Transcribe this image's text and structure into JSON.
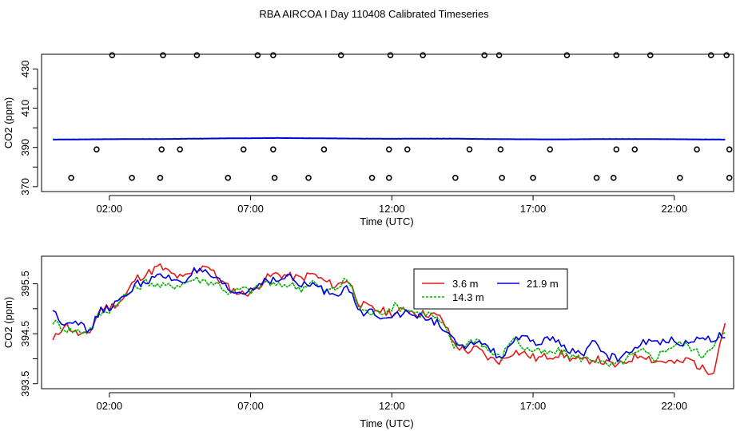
{
  "figure_title": "RBA AIRCOA I  Day 110408  Calibrated Timeseries",
  "colors": {
    "red": "#e41a1c",
    "green": "#00b400",
    "blue": "#0000e0",
    "axis": "#000000"
  },
  "chart_data": [
    {
      "type": "scatter",
      "title": "",
      "xlabel": "Time (UTC)",
      "ylabel": "CO2 (ppm)",
      "xlim": [
        -0.4,
        24.1
      ],
      "ylim": [
        367.5,
        437.5
      ],
      "xticks": [
        2,
        7,
        12,
        17,
        22
      ],
      "xtick_labels": [
        "02:00",
        "07:00",
        "12:00",
        "17:00",
        "22:00"
      ],
      "yticks": [
        370,
        390,
        410,
        430
      ],
      "ytick_labels": [
        "370",
        "390",
        "410",
        "430"
      ],
      "minor_yticks": [
        380,
        400,
        420
      ],
      "grid": false,
      "markers": {
        "top_row_ppm": 437,
        "top_row_hours": [
          2.1,
          3.9,
          5.1,
          7.25,
          7.8,
          10.2,
          11.95,
          13.1,
          15.28,
          15.8,
          18.2,
          19.95,
          21.15,
          23.3,
          23.85
        ],
        "mid_row_ppm": 389,
        "mid_row_hours": [
          1.55,
          3.85,
          4.5,
          6.75,
          7.8,
          9.6,
          11.9,
          12.55,
          14.75,
          15.85,
          17.6,
          19.95,
          20.6,
          22.8,
          23.95
        ],
        "bottom_row_ppm": 374.5,
        "bottom_row_hours": [
          0.65,
          2.8,
          3.8,
          6.2,
          7.85,
          9.05,
          11.3,
          11.9,
          14.25,
          15.9,
          17.0,
          19.25,
          19.85,
          22.2,
          23.95
        ]
      },
      "series": [
        {
          "name": "flat trace",
          "color_key": "blue",
          "x_start": 0.0,
          "x_end": 23.8,
          "values": [
            394.0,
            394.2,
            394.3,
            394.6,
            394.8,
            394.6,
            394.4,
            394.5,
            394.2,
            394.1,
            394.3,
            394.2,
            394.0
          ]
        }
      ]
    },
    {
      "type": "line",
      "title": "",
      "xlabel": "Time (UTC)",
      "ylabel": "CO2 (ppm)",
      "xlim": [
        -0.4,
        24.1
      ],
      "ylim": [
        393.4,
        396.05
      ],
      "xticks": [
        2,
        7,
        12,
        17,
        22
      ],
      "xtick_labels": [
        "02:00",
        "07:00",
        "12:00",
        "17:00",
        "22:00"
      ],
      "yticks": [
        393.5,
        394.5,
        395.5
      ],
      "ytick_labels": [
        "393.5",
        "394.5",
        "395.5"
      ],
      "minor_yticks": [
        394.0,
        395.0
      ],
      "grid": false,
      "legend": {
        "position": "upper-middle",
        "entries": [
          {
            "label": "3.6 m",
            "color_key": "red"
          },
          {
            "label": "21.9 m",
            "color_key": "blue"
          },
          {
            "label": "14.3 m",
            "color_key": "green"
          }
        ]
      },
      "series": [
        {
          "name": "3.6 m",
          "color_key": "red",
          "x_start": 0.0,
          "x_end": 23.8,
          "wiggle": 0.085,
          "values": [
            394.35,
            394.7,
            394.5,
            394.45,
            395.0,
            395.05,
            395.2,
            395.6,
            395.7,
            395.85,
            395.7,
            395.6,
            395.75,
            395.9,
            395.6,
            395.4,
            395.3,
            395.35,
            395.6,
            395.7,
            395.65,
            395.6,
            395.7,
            395.55,
            395.45,
            395.6,
            395.1,
            395.0,
            394.95,
            394.9,
            395.0,
            394.9,
            394.9,
            394.8,
            394.3,
            394.15,
            394.2,
            394.0,
            393.95,
            394.15,
            394.1,
            394.0,
            394.05,
            394.1,
            394.0,
            393.95,
            394.0,
            393.9,
            393.85,
            394.0,
            394.1,
            393.95,
            393.95,
            393.9,
            394.0,
            393.8,
            393.75,
            394.75
          ]
        },
        {
          "name": "14.3 m",
          "color_key": "green",
          "x_start": 0.0,
          "x_end": 23.8,
          "wiggle": 0.08,
          "values": [
            394.75,
            394.6,
            394.55,
            394.55,
            394.9,
            395.0,
            395.25,
            395.4,
            395.55,
            395.45,
            395.45,
            395.5,
            395.6,
            395.55,
            395.5,
            395.3,
            395.4,
            395.35,
            395.55,
            395.45,
            395.5,
            395.4,
            395.55,
            395.35,
            395.4,
            395.6,
            395.0,
            394.9,
            394.95,
            395.05,
            395.0,
            394.9,
            394.9,
            394.7,
            394.25,
            394.3,
            394.4,
            394.15,
            394.0,
            394.45,
            394.2,
            394.15,
            394.1,
            394.15,
            394.05,
            394.0,
            394.0,
            393.85,
            393.9,
            394.05,
            394.15,
            394.0,
            394.2,
            394.3,
            394.25,
            394.05,
            394.3,
            394.5
          ]
        },
        {
          "name": "21.9 m",
          "color_key": "blue",
          "x_start": 0.0,
          "x_end": 23.8,
          "wiggle": 0.08,
          "values": [
            394.95,
            394.7,
            394.8,
            394.5,
            394.95,
            395.05,
            395.2,
            395.5,
            395.55,
            395.65,
            395.6,
            395.55,
            395.75,
            395.7,
            395.55,
            395.35,
            395.3,
            395.4,
            395.6,
            395.55,
            395.65,
            395.45,
            395.5,
            395.35,
            395.3,
            395.45,
            394.9,
            394.95,
            394.85,
            394.9,
            394.9,
            394.85,
            394.8,
            394.65,
            394.35,
            394.15,
            394.4,
            394.2,
            394.0,
            394.35,
            394.4,
            394.3,
            394.4,
            394.3,
            394.15,
            394.1,
            394.35,
            394.05,
            394.0,
            394.15,
            394.35,
            394.3,
            394.4,
            394.35,
            394.3,
            394.45,
            394.4,
            394.5
          ]
        }
      ]
    }
  ]
}
